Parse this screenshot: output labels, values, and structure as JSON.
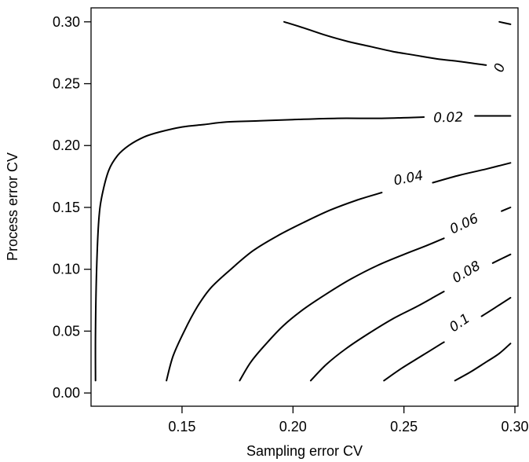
{
  "chart_data": {
    "type": "contour",
    "xlabel": "Sampling error CV",
    "ylabel": "Process error CV",
    "xlim": [
      0.11,
      0.3
    ],
    "ylim": [
      0.0,
      0.3
    ],
    "x_ticks": [
      {
        "value": 0.15,
        "label": "0.15"
      },
      {
        "value": 0.2,
        "label": "0.20"
      },
      {
        "value": 0.25,
        "label": "0.25"
      },
      {
        "value": 0.3,
        "label": "0.30"
      }
    ],
    "y_ticks": [
      {
        "value": 0.0,
        "label": "0.00"
      },
      {
        "value": 0.05,
        "label": "0.05"
      },
      {
        "value": 0.1,
        "label": "0.10"
      },
      {
        "value": 0.15,
        "label": "0.15"
      },
      {
        "value": 0.2,
        "label": "0.20"
      },
      {
        "value": 0.25,
        "label": "0.25"
      },
      {
        "value": 0.3,
        "label": "0.30"
      }
    ],
    "grid": false,
    "contours": [
      {
        "level": 0,
        "label": "0",
        "label_at": [
          0.293,
          0.263
        ],
        "segments": [
          [
            [
              0.196,
              0.3
            ],
            [
              0.205,
              0.295
            ],
            [
              0.215,
              0.289
            ],
            [
              0.225,
              0.284
            ],
            [
              0.235,
              0.28
            ],
            [
              0.245,
              0.276
            ],
            [
              0.255,
              0.273
            ],
            [
              0.265,
              0.27
            ],
            [
              0.275,
              0.268
            ],
            [
              0.287,
              0.265
            ]
          ],
          [
            [
              0.293,
              0.3
            ],
            [
              0.298,
              0.298
            ]
          ]
        ]
      },
      {
        "level": 0.02,
        "label": "0.02",
        "label_at": [
          0.27,
          0.223
        ],
        "segments": [
          [
            [
              0.111,
              0.01
            ],
            [
              0.111,
              0.05
            ],
            [
              0.1115,
              0.1
            ],
            [
              0.1125,
              0.14
            ],
            [
              0.114,
              0.16
            ],
            [
              0.117,
              0.18
            ],
            [
              0.121,
              0.192
            ],
            [
              0.126,
              0.2
            ],
            [
              0.133,
              0.207
            ],
            [
              0.14,
              0.211
            ],
            [
              0.15,
              0.215
            ],
            [
              0.16,
              0.217
            ],
            [
              0.17,
              0.219
            ],
            [
              0.185,
              0.22
            ],
            [
              0.2,
              0.221
            ],
            [
              0.22,
              0.222
            ],
            [
              0.24,
              0.222
            ],
            [
              0.259,
              0.223
            ]
          ],
          [
            [
              0.282,
              0.224
            ],
            [
              0.298,
              0.224
            ]
          ]
        ]
      },
      {
        "level": 0.04,
        "label": "0.04",
        "label_at": [
          0.252,
          0.174
        ],
        "segments": [
          [
            [
              0.143,
              0.01
            ],
            [
              0.146,
              0.03
            ],
            [
              0.151,
              0.05
            ],
            [
              0.157,
              0.07
            ],
            [
              0.163,
              0.085
            ],
            [
              0.172,
              0.1
            ],
            [
              0.182,
              0.115
            ],
            [
              0.193,
              0.127
            ],
            [
              0.205,
              0.138
            ],
            [
              0.217,
              0.148
            ],
            [
              0.229,
              0.156
            ],
            [
              0.24,
              0.162
            ]
          ],
          [
            [
              0.263,
              0.17
            ],
            [
              0.275,
              0.176
            ],
            [
              0.287,
              0.181
            ],
            [
              0.298,
              0.186
            ]
          ]
        ]
      },
      {
        "level": 0.06,
        "label": "0.06",
        "label_at": [
          0.277,
          0.137
        ],
        "segments": [
          [
            [
              0.176,
              0.01
            ],
            [
              0.181,
              0.025
            ],
            [
              0.188,
              0.04
            ],
            [
              0.196,
              0.055
            ],
            [
              0.205,
              0.068
            ],
            [
              0.215,
              0.08
            ],
            [
              0.226,
              0.092
            ],
            [
              0.238,
              0.103
            ],
            [
              0.25,
              0.112
            ],
            [
              0.26,
              0.119
            ],
            [
              0.268,
              0.125
            ]
          ],
          [
            [
              0.294,
              0.147
            ],
            [
              0.298,
              0.15
            ]
          ]
        ]
      },
      {
        "level": 0.08,
        "label": "0.08",
        "label_at": [
          0.278,
          0.098
        ],
        "segments": [
          [
            [
              0.208,
              0.01
            ],
            [
              0.215,
              0.023
            ],
            [
              0.224,
              0.036
            ],
            [
              0.234,
              0.048
            ],
            [
              0.245,
              0.06
            ],
            [
              0.256,
              0.07
            ],
            [
              0.264,
              0.078
            ],
            [
              0.268,
              0.082
            ]
          ],
          [
            [
              0.29,
              0.105
            ],
            [
              0.298,
              0.112
            ]
          ]
        ]
      },
      {
        "level": 0.1,
        "label": "0.1",
        "label_at": [
          0.275,
          0.057
        ],
        "segments": [
          [
            [
              0.241,
              0.01
            ],
            [
              0.249,
              0.02
            ],
            [
              0.258,
              0.03
            ],
            [
              0.267,
              0.04
            ],
            [
              0.268,
              0.041
            ]
          ],
          [
            [
              0.285,
              0.062
            ],
            [
              0.292,
              0.07
            ],
            [
              0.298,
              0.077
            ]
          ]
        ]
      },
      {
        "level": 0.12,
        "label": "",
        "label_at": null,
        "segments": [
          [
            [
              0.273,
              0.01
            ],
            [
              0.28,
              0.017
            ],
            [
              0.287,
              0.025
            ],
            [
              0.293,
              0.032
            ],
            [
              0.298,
              0.04
            ]
          ]
        ]
      }
    ]
  }
}
